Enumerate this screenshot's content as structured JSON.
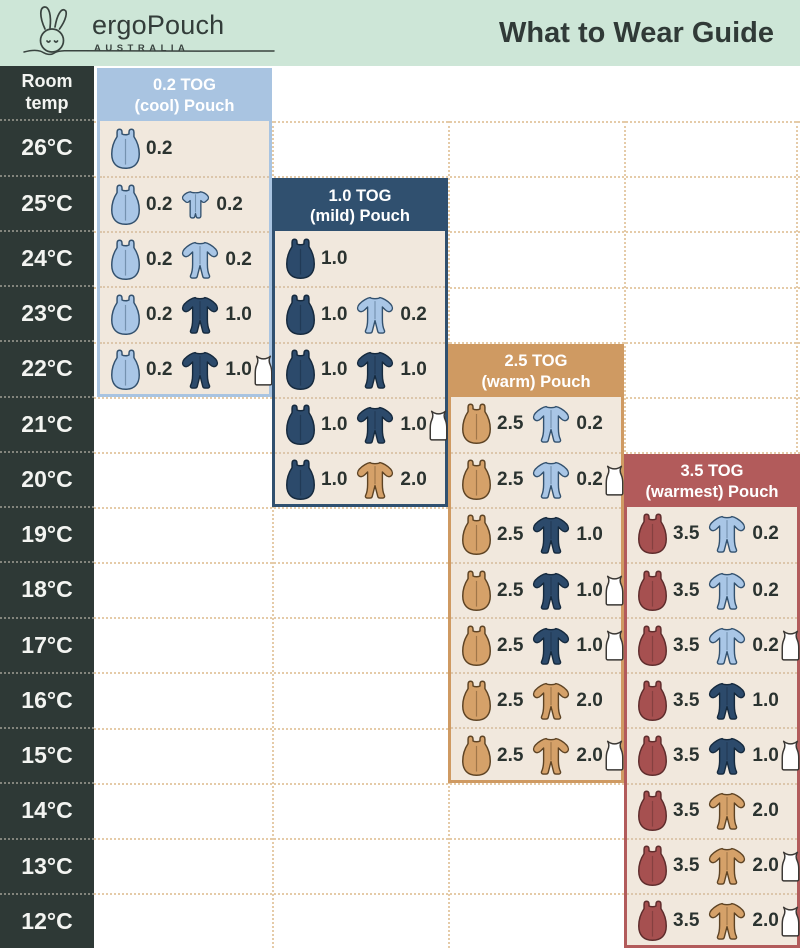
{
  "header": {
    "brand_name": "ergoPouch",
    "brand_sub": "AUSTRALIA",
    "title": "What to Wear Guide"
  },
  "temp_column": {
    "header": "Room temp"
  },
  "colors": {
    "mint": "#cde6d7",
    "charcoal": "#2e3936",
    "cream": "#f1e8dd",
    "grid_dot": "#e5cba8",
    "text_dark": "#2b3330",
    "lightblue": "#a9c4e1",
    "navy": "#30506f",
    "tan": "#cf9a62",
    "red": "#b25b5b",
    "singlet_white": "#ffffff"
  },
  "chart_data": {
    "type": "table",
    "title": "What to Wear Guide",
    "row_header": "Room temp",
    "room_temps": [
      "26°C",
      "25°C",
      "24°C",
      "23°C",
      "22°C",
      "21°C",
      "20°C",
      "19°C",
      "18°C",
      "17°C",
      "16°C",
      "15°C",
      "14°C",
      "13°C",
      "12°C"
    ],
    "panels": [
      {
        "tog": "0.2",
        "title_line1": "0.2 TOG",
        "title_line2": "(cool) Pouch",
        "color_key": "lightblue",
        "rows": [
          {
            "temp": "26°C",
            "pouch_tog": "0.2"
          },
          {
            "temp": "25°C",
            "pouch_tog": "0.2",
            "garment": "romper-lightblue",
            "garment_tog": "0.2"
          },
          {
            "temp": "24°C",
            "pouch_tog": "0.2",
            "garment": "onesie-lightblue",
            "garment_tog": "0.2"
          },
          {
            "temp": "23°C",
            "pouch_tog": "0.2",
            "garment": "onesie-navy",
            "garment_tog": "1.0"
          },
          {
            "temp": "22°C",
            "pouch_tog": "0.2",
            "garment": "onesie-navy",
            "garment_tog": "1.0",
            "singlet": true
          }
        ]
      },
      {
        "tog": "1.0",
        "title_line1": "1.0 TOG",
        "title_line2": "(mild) Pouch",
        "color_key": "navy",
        "rows": [
          {
            "temp": "24°C",
            "pouch_tog": "1.0"
          },
          {
            "temp": "23°C",
            "pouch_tog": "1.0",
            "garment": "onesie-lightblue",
            "garment_tog": "0.2"
          },
          {
            "temp": "22°C",
            "pouch_tog": "1.0",
            "garment": "onesie-navy",
            "garment_tog": "1.0"
          },
          {
            "temp": "21°C",
            "pouch_tog": "1.0",
            "garment": "onesie-navy",
            "garment_tog": "1.0",
            "singlet": true
          },
          {
            "temp": "20°C",
            "pouch_tog": "1.0",
            "garment": "onesie-tan",
            "garment_tog": "2.0"
          }
        ]
      },
      {
        "tog": "2.5",
        "title_line1": "2.5 TOG",
        "title_line2": "(warm) Pouch",
        "color_key": "tan",
        "rows": [
          {
            "temp": "21°C",
            "pouch_tog": "2.5",
            "garment": "onesie-lightblue",
            "garment_tog": "0.2"
          },
          {
            "temp": "20°C",
            "pouch_tog": "2.5",
            "garment": "onesie-lightblue",
            "garment_tog": "0.2",
            "singlet": true
          },
          {
            "temp": "19°C",
            "pouch_tog": "2.5",
            "garment": "onesie-navy",
            "garment_tog": "1.0"
          },
          {
            "temp": "18°C",
            "pouch_tog": "2.5",
            "garment": "onesie-navy",
            "garment_tog": "1.0",
            "singlet": true
          },
          {
            "temp": "17°C",
            "pouch_tog": "2.5",
            "garment": "onesie-navy",
            "garment_tog": "1.0",
            "singlet": true
          },
          {
            "temp": "16°C",
            "pouch_tog": "2.5",
            "garment": "onesie-tan",
            "garment_tog": "2.0"
          },
          {
            "temp": "15°C",
            "pouch_tog": "2.5",
            "garment": "onesie-tan",
            "garment_tog": "2.0",
            "singlet": true
          }
        ]
      },
      {
        "tog": "3.5",
        "title_line1": "3.5 TOG",
        "title_line2": "(warmest) Pouch",
        "color_key": "red",
        "rows": [
          {
            "temp": "19°C",
            "pouch_tog": "3.5",
            "garment": "onesie-lightblue",
            "garment_tog": "0.2"
          },
          {
            "temp": "18°C",
            "pouch_tog": "3.5",
            "garment": "onesie-lightblue",
            "garment_tog": "0.2"
          },
          {
            "temp": "17°C",
            "pouch_tog": "3.5",
            "garment": "onesie-lightblue",
            "garment_tog": "0.2",
            "singlet": true
          },
          {
            "temp": "16°C",
            "pouch_tog": "3.5",
            "garment": "onesie-navy",
            "garment_tog": "1.0"
          },
          {
            "temp": "15°C",
            "pouch_tog": "3.5",
            "garment": "onesie-navy",
            "garment_tog": "1.0",
            "singlet": true
          },
          {
            "temp": "14°C",
            "pouch_tog": "3.5",
            "garment": "onesie-tan",
            "garment_tog": "2.0"
          },
          {
            "temp": "13°C",
            "pouch_tog": "3.5",
            "garment": "onesie-tan",
            "garment_tog": "2.0",
            "singlet": true
          },
          {
            "temp": "12°C",
            "pouch_tog": "3.5",
            "garment": "onesie-tan",
            "garment_tog": "2.0",
            "singlet": true
          }
        ]
      }
    ]
  }
}
